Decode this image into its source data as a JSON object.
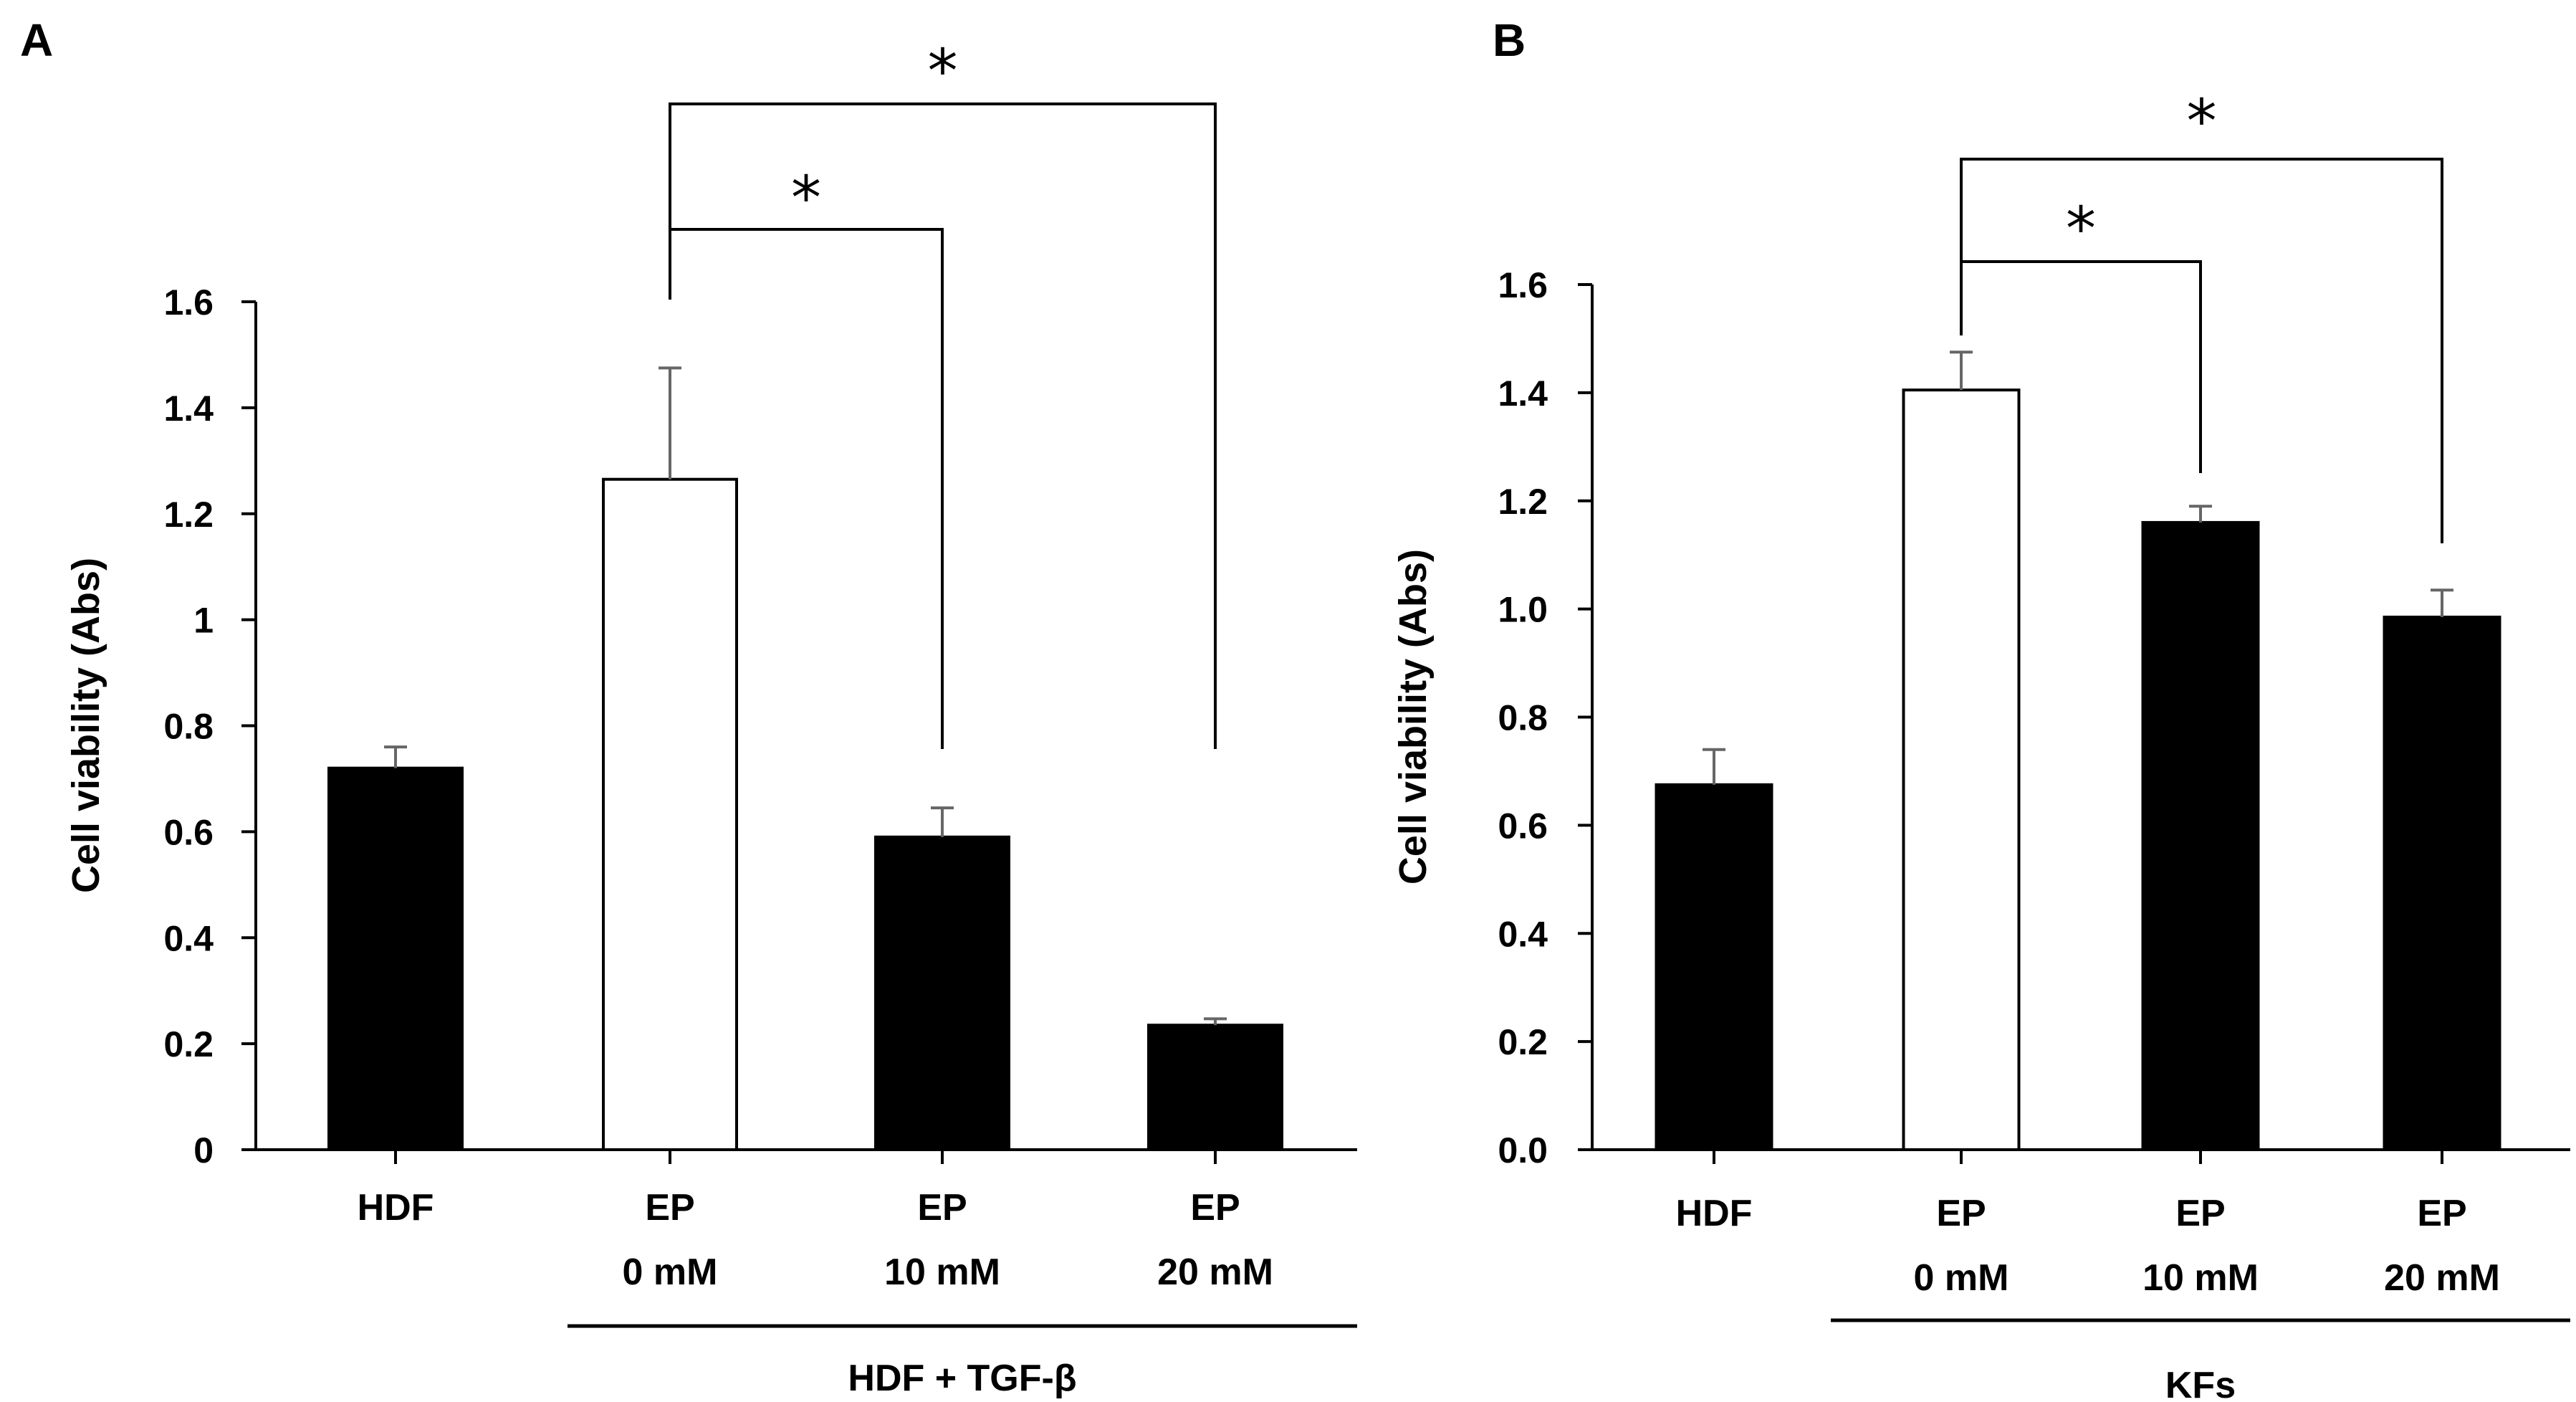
{
  "chart_data": [
    {
      "panel": "A",
      "type": "bar",
      "ylabel": "Cell viability (Abs)",
      "ylim": [
        0,
        1.6
      ],
      "yticks": [
        "0",
        "0.2",
        "0.4",
        "0.6",
        "0.8",
        "1",
        "1.2",
        "1.4",
        "1.6"
      ],
      "categories": [
        {
          "lines": [
            "HDF"
          ]
        },
        {
          "lines": [
            "EP",
            "0 mM"
          ]
        },
        {
          "lines": [
            "EP",
            "10 mM"
          ]
        },
        {
          "lines": [
            "EP",
            "20 mM"
          ]
        }
      ],
      "values": [
        0.72,
        1.265,
        0.59,
        0.235
      ],
      "errors": [
        0.04,
        0.21,
        0.055,
        0.012
      ],
      "fills": [
        "#000000",
        "#ffffff",
        "#000000",
        "#000000"
      ],
      "group_label": "HDF + TGF-β",
      "significance": [
        {
          "from": 1,
          "to": 2,
          "label": "*"
        },
        {
          "from": 1,
          "to": 3,
          "label": "*"
        }
      ]
    },
    {
      "panel": "B",
      "type": "bar",
      "ylabel": "Cell viability (Abs)",
      "ylim": [
        0,
        1.6
      ],
      "yticks": [
        "0.0",
        "0.2",
        "0.4",
        "0.6",
        "0.8",
        "1.0",
        "1.2",
        "1.4",
        "1.6"
      ],
      "categories": [
        {
          "lines": [
            "HDF"
          ]
        },
        {
          "lines": [
            "EP",
            "0 mM"
          ]
        },
        {
          "lines": [
            "EP",
            "10 mM"
          ]
        },
        {
          "lines": [
            "EP",
            "20 mM"
          ]
        }
      ],
      "values": [
        0.675,
        1.405,
        1.16,
        0.985
      ],
      "errors": [
        0.065,
        0.07,
        0.03,
        0.05
      ],
      "fills": [
        "#000000",
        "#ffffff",
        "#000000",
        "#000000"
      ],
      "group_label": "KFs",
      "significance": [
        {
          "from": 1,
          "to": 2,
          "label": "*"
        },
        {
          "from": 1,
          "to": 3,
          "label": "*"
        }
      ]
    }
  ]
}
